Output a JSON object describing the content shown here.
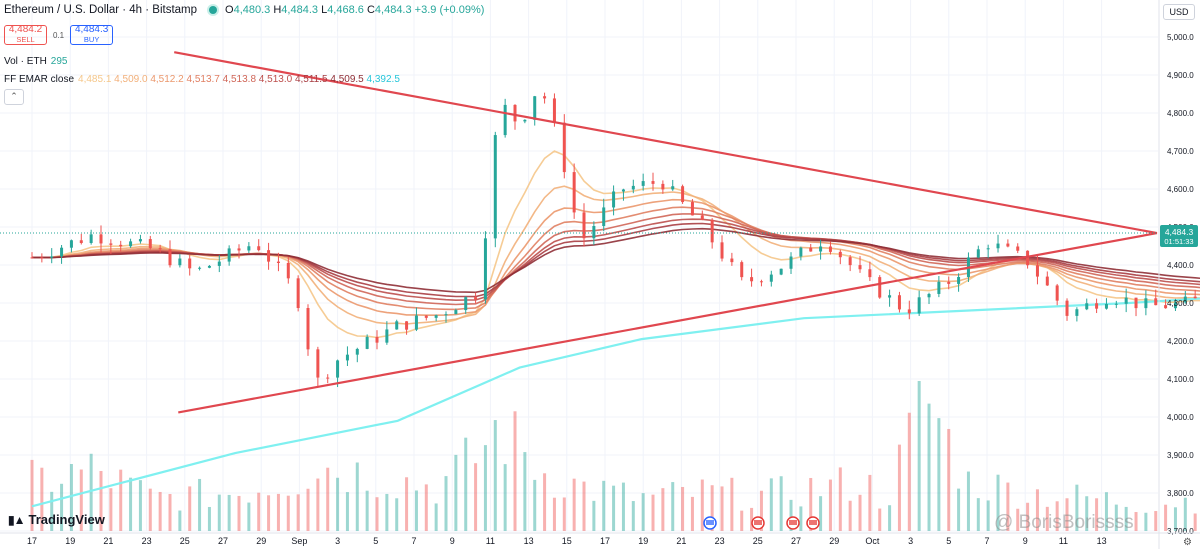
{
  "header": {
    "symbol": "Ethereum / U.S. Dollar · 4h · Bitstamp",
    "ohlc": {
      "o_label": "O",
      "o": "4,480.3",
      "h_label": "H",
      "h": "4,484.3",
      "l_label": "L",
      "l": "4,468.6",
      "c_label": "C",
      "c": "4,484.3",
      "change": "+3.9 (+0.09%)"
    },
    "sell_price": "4,484.2",
    "sell_label": "SELL",
    "spread": "0.1",
    "buy_price": "4,484.3",
    "buy_label": "BUY",
    "vol_label": "Vol · ETH",
    "vol_value": "295",
    "ema_label": "FF EMAR close",
    "ema_values": [
      "4,485.1",
      "4,509.0",
      "4,512.2",
      "4,513.7",
      "4,513.8",
      "4,513.0",
      "4,511.5",
      "4,509.5",
      "4,392.5"
    ],
    "collapse_icon": "chevron-up-icon"
  },
  "currency": "USD",
  "price_badge": {
    "value": "4,484.3",
    "countdown": "01:51:33"
  },
  "branding": {
    "logo": "TradingView",
    "watermark": "@ BorisBorissss"
  },
  "colors": {
    "up": "#26a69a",
    "down": "#ef5350",
    "trendline": "#e0474f",
    "slow_ema": "#7ff0f0",
    "grid": "#f0f3fa"
  },
  "chart_data": {
    "type": "candlestick",
    "symbol": "ETH/USD",
    "interval": "4h",
    "ylim": [
      3700,
      5050
    ],
    "y_ticks": [
      "5,000.0",
      "4,900.0",
      "4,800.0",
      "4,700.0",
      "4,600.0",
      "4,500.0",
      "4,400.0",
      "4,300.0",
      "4,200.0",
      "4,100.0",
      "4,000.0",
      "3,900.0",
      "3,800.0",
      "3,700.0"
    ],
    "x_ticks": [
      "17",
      "19",
      "21",
      "23",
      "25",
      "27",
      "29",
      "Sep",
      "3",
      "5",
      "7",
      "9",
      "11",
      "13",
      "15",
      "17",
      "19",
      "21",
      "23",
      "25",
      "27",
      "29",
      "Oct",
      "3",
      "5",
      "7",
      "9",
      "11",
      "13"
    ],
    "price_path": [
      [
        0,
        4420
      ],
      [
        3,
        4480
      ],
      [
        6,
        4440
      ],
      [
        8,
        4380
      ],
      [
        11,
        4460
      ],
      [
        13,
        4330
      ],
      [
        14,
        4090
      ],
      [
        15,
        4150
      ],
      [
        18,
        4240
      ],
      [
        20,
        4270
      ],
      [
        22,
        4330
      ],
      [
        23,
        4830
      ],
      [
        24,
        4770
      ],
      [
        25,
        4880
      ],
      [
        26,
        4710
      ],
      [
        27,
        4460
      ],
      [
        29,
        4600
      ],
      [
        31,
        4620
      ],
      [
        33,
        4500
      ],
      [
        35,
        4350
      ],
      [
        37,
        4400
      ],
      [
        39,
        4470
      ],
      [
        41,
        4360
      ],
      [
        43,
        4280
      ],
      [
        45,
        4350
      ],
      [
        47,
        4460
      ],
      [
        49,
        4410
      ],
      [
        51,
        4270
      ],
      [
        53,
        4320
      ],
      [
        55,
        4290
      ],
      [
        57,
        4300
      ],
      [
        59,
        4340
      ],
      [
        61,
        4440
      ],
      [
        63,
        4520
      ],
      [
        65,
        4610
      ],
      [
        66,
        4740
      ],
      [
        68,
        4680
      ],
      [
        70,
        4620
      ],
      [
        71,
        4540
      ],
      [
        73,
        4580
      ],
      [
        75,
        4470
      ],
      [
        76,
        4500
      ],
      [
        77,
        4620
      ],
      [
        79,
        4560
      ],
      [
        80,
        4520
      ],
      [
        81,
        4480
      ],
      [
        82,
        4484.3
      ]
    ],
    "volume_path": [
      [
        0,
        90
      ],
      [
        3,
        110
      ],
      [
        6,
        60
      ],
      [
        10,
        70
      ],
      [
        13,
        95
      ],
      [
        14,
        120
      ],
      [
        20,
        80
      ],
      [
        22,
        140
      ],
      [
        23,
        190
      ],
      [
        25,
        110
      ],
      [
        27,
        80
      ],
      [
        30,
        60
      ],
      [
        33,
        70
      ],
      [
        36,
        65
      ],
      [
        39,
        80
      ],
      [
        41,
        90
      ],
      [
        42,
        50
      ],
      [
        44,
        250
      ],
      [
        46,
        90
      ],
      [
        49,
        70
      ],
      [
        52,
        60
      ],
      [
        55,
        50
      ],
      [
        58,
        60
      ],
      [
        61,
        110
      ],
      [
        63,
        95
      ],
      [
        65,
        120
      ],
      [
        67,
        80
      ],
      [
        70,
        70
      ],
      [
        73,
        85
      ],
      [
        75,
        130
      ],
      [
        77,
        60
      ],
      [
        80,
        40
      ],
      [
        82,
        20
      ]
    ],
    "emas": [
      {
        "value": "4,485.1"
      },
      {
        "value": "4,509.0"
      },
      {
        "value": "4,512.2"
      },
      {
        "value": "4,513.7"
      },
      {
        "value": "4,513.8"
      },
      {
        "value": "4,513.0"
      },
      {
        "value": "4,511.5"
      },
      {
        "value": "4,509.5"
      },
      {
        "value": "4,392.5"
      }
    ],
    "trendlines": [
      {
        "from": [
          3.5,
          4960
        ],
        "to": [
          91,
          4484
        ]
      },
      {
        "from": [
          3.6,
          4012
        ],
        "to": [
          91,
          4484
        ]
      }
    ],
    "last_price": 4484.3
  }
}
